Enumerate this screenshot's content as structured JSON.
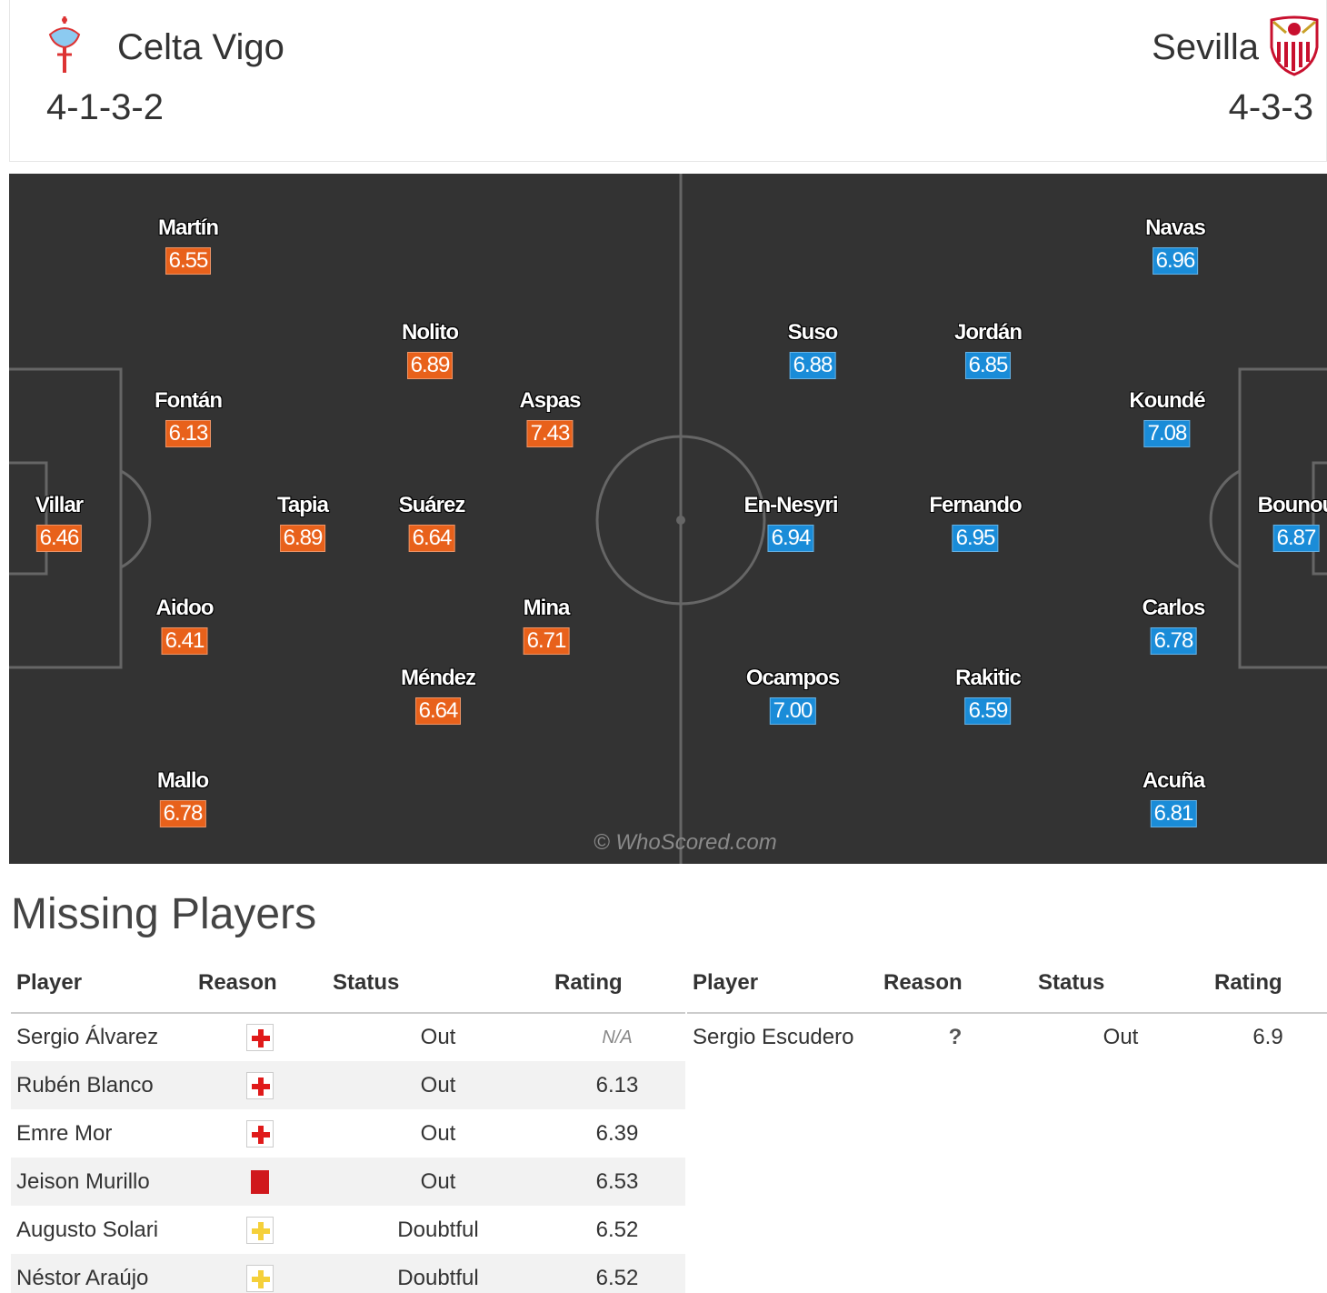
{
  "home": {
    "name": "Celta Vigo",
    "formation": "4-1-3-2",
    "players": [
      {
        "name": "Martín",
        "rating": "6.55"
      },
      {
        "name": "Nolito",
        "rating": "6.89"
      },
      {
        "name": "Fontán",
        "rating": "6.13"
      },
      {
        "name": "Aspas",
        "rating": "7.43"
      },
      {
        "name": "Villar",
        "rating": "6.46"
      },
      {
        "name": "Tapia",
        "rating": "6.89"
      },
      {
        "name": "Suárez",
        "rating": "6.64"
      },
      {
        "name": "Aidoo",
        "rating": "6.41"
      },
      {
        "name": "Mina",
        "rating": "6.71"
      },
      {
        "name": "Méndez",
        "rating": "6.64"
      },
      {
        "name": "Mallo",
        "rating": "6.78"
      }
    ]
  },
  "away": {
    "name": "Sevilla",
    "formation": "4-3-3",
    "players": [
      {
        "name": "Navas",
        "rating": "6.96"
      },
      {
        "name": "Suso",
        "rating": "6.88"
      },
      {
        "name": "Jordán",
        "rating": "6.85"
      },
      {
        "name": "Koundé",
        "rating": "7.08"
      },
      {
        "name": "En-Nesyri",
        "rating": "6.94"
      },
      {
        "name": "Fernando",
        "rating": "6.95"
      },
      {
        "name": "Bounou",
        "rating": "6.87"
      },
      {
        "name": "Carlos",
        "rating": "6.78"
      },
      {
        "name": "Ocampos",
        "rating": "7.00"
      },
      {
        "name": "Rakitic",
        "rating": "6.59"
      },
      {
        "name": "Acuña",
        "rating": "6.81"
      }
    ]
  },
  "watermark": "© WhoScored.com",
  "missing": {
    "title": "Missing Players",
    "headers": {
      "player": "Player",
      "reason": "Reason",
      "status": "Status",
      "rating": "Rating"
    },
    "home_rows": [
      {
        "player": "Sergio Álvarez",
        "reason": "injury-icon",
        "status": "Out",
        "rating": "N/A"
      },
      {
        "player": "Rubén Blanco",
        "reason": "injury-icon",
        "status": "Out",
        "rating": "6.13"
      },
      {
        "player": "Emre Mor",
        "reason": "injury-icon",
        "status": "Out",
        "rating": "6.39"
      },
      {
        "player": "Jeison Murillo",
        "reason": "red-card-icon",
        "status": "Out",
        "rating": "6.53"
      },
      {
        "player": "Augusto Solari",
        "reason": "doubtful-icon",
        "status": "Doubtful",
        "rating": "6.52"
      },
      {
        "player": "Néstor Araújo",
        "reason": "doubtful-icon",
        "status": "Doubtful",
        "rating": "6.52"
      }
    ],
    "away_rows": [
      {
        "player": "Sergio Escudero",
        "reason": "unknown-icon",
        "unknown_glyph": "?",
        "status": "Out",
        "rating": "6.9"
      }
    ]
  },
  "colors": {
    "home_badge": "#e8611b",
    "away_badge": "#1a8cd8",
    "pitch": "#333333",
    "injury": "#e01a1a",
    "doubtful": "#f5d03a",
    "red_card": "#d0181c"
  }
}
